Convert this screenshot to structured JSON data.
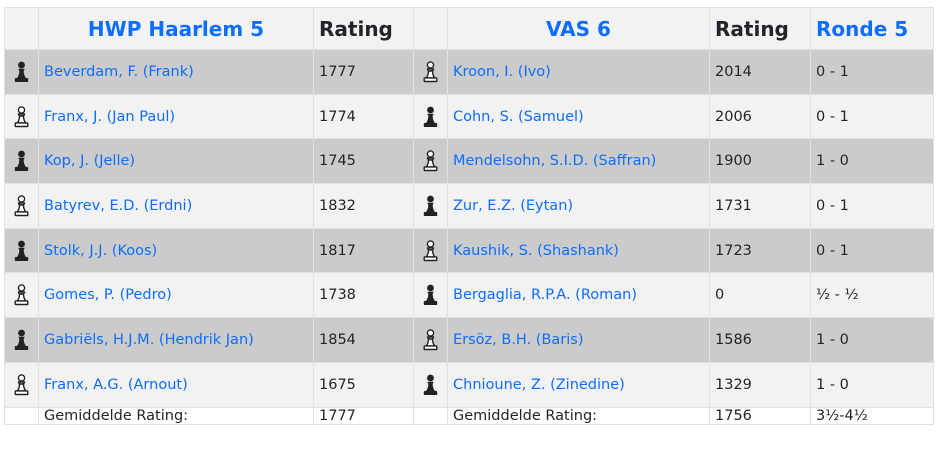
{
  "header": {
    "home_team": "HWP Haarlem 5",
    "rating_label": "Rating",
    "away_team": "VAS 6",
    "away_rating_label": "Rating",
    "round_label": "Ronde 5"
  },
  "rows": [
    {
      "home_color": "black",
      "home_name": "Beverdam, F. (Frank)",
      "home_rating": "1777",
      "away_color": "white",
      "away_name": "Kroon, I. (Ivo)",
      "away_rating": "2014",
      "result": "0 - 1"
    },
    {
      "home_color": "white",
      "home_name": "Franx, J. (Jan Paul)",
      "home_rating": "1774",
      "away_color": "black",
      "away_name": "Cohn, S. (Samuel)",
      "away_rating": "2006",
      "result": "0 - 1"
    },
    {
      "home_color": "black",
      "home_name": "Kop, J. (Jelle)",
      "home_rating": "1745",
      "away_color": "white",
      "away_name": "Mendelsohn, S.I.D. (Saffran)",
      "away_rating": "1900",
      "result": "1 - 0"
    },
    {
      "home_color": "white",
      "home_name": "Batyrev, E.D. (Erdni)",
      "home_rating": "1832",
      "away_color": "black",
      "away_name": "Zur, E.Z. (Eytan)",
      "away_rating": "1731",
      "result": "0 - 1"
    },
    {
      "home_color": "black",
      "home_name": "Stolk, J.J. (Koos)",
      "home_rating": "1817",
      "away_color": "white",
      "away_name": "Kaushik, S. (Shashank)",
      "away_rating": "1723",
      "result": "0 - 1"
    },
    {
      "home_color": "white",
      "home_name": "Gomes, P. (Pedro)",
      "home_rating": "1738",
      "away_color": "black",
      "away_name": "Bergaglia, R.P.A. (Roman)",
      "away_rating": "0",
      "result": "½ - ½"
    },
    {
      "home_color": "black",
      "home_name": "Gabriëls, H.J.M. (Hendrik Jan)",
      "home_rating": "1854",
      "away_color": "white",
      "away_name": "Ersöz, B.H. (Baris)",
      "away_rating": "1586",
      "result": "1 - 0"
    },
    {
      "home_color": "white",
      "home_name": "Franx, A.G. (Arnout)",
      "home_rating": "1675",
      "away_color": "black",
      "away_name": "Chnioune, Z. (Zinedine)",
      "away_rating": "1329",
      "result": "1 - 0"
    }
  ],
  "footer": {
    "home_avg_label": "Gemiddelde Rating:",
    "home_avg": "1777",
    "away_avg_label": "Gemiddelde Rating:",
    "away_avg": "1756",
    "total_score": "3½-4½"
  },
  "icons": {
    "black_piece": "black-pawn-icon",
    "white_piece": "white-pawn-icon"
  },
  "colors": {
    "link": "#0d6efd",
    "row_dark": "#cbcbcb",
    "row_light": "#f2f2f2"
  }
}
